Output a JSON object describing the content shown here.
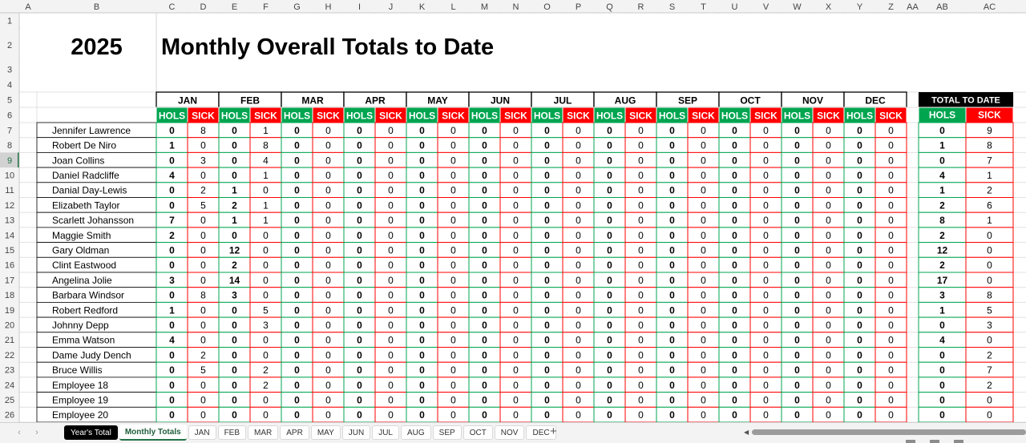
{
  "columns": [
    "A",
    "B",
    "C",
    "D",
    "E",
    "F",
    "G",
    "H",
    "I",
    "J",
    "K",
    "L",
    "M",
    "N",
    "O",
    "P",
    "Q",
    "R",
    "S",
    "T",
    "U",
    "V",
    "W",
    "X",
    "Y",
    "Z",
    "AA",
    "AB",
    "AC"
  ],
  "rows": [
    "1",
    "2",
    "3",
    "4",
    "5",
    "6",
    "7",
    "8",
    "9",
    "10",
    "11",
    "12",
    "13",
    "14",
    "15",
    "16",
    "17",
    "18",
    "19",
    "20",
    "21",
    "22",
    "23",
    "24",
    "25",
    "26"
  ],
  "year": "2025",
  "title": "Monthly Overall Totals to Date",
  "months": [
    "JAN",
    "FEB",
    "MAR",
    "APR",
    "MAY",
    "JUN",
    "JUL",
    "AUG",
    "SEP",
    "OCT",
    "NOV",
    "DEC"
  ],
  "hols_label": "HOLS",
  "sick_label": "SICK",
  "total_label": "TOTAL TO DATE",
  "colors": {
    "hols": "#00a550",
    "sick": "#ff0000",
    "header_black": "#000000",
    "selected_row": "#217346"
  },
  "selected_row": "9",
  "employees": [
    {
      "name": "Jennifer Lawrence",
      "jan": [
        0,
        8
      ],
      "feb": [
        0,
        1
      ],
      "total": [
        0,
        9
      ]
    },
    {
      "name": "Robert De Niro",
      "jan": [
        1,
        0
      ],
      "feb": [
        0,
        8
      ],
      "total": [
        1,
        8
      ]
    },
    {
      "name": "Joan Collins",
      "jan": [
        0,
        3
      ],
      "feb": [
        0,
        4
      ],
      "total": [
        0,
        7
      ]
    },
    {
      "name": "Daniel Radcliffe",
      "jan": [
        4,
        0
      ],
      "feb": [
        0,
        1
      ],
      "total": [
        4,
        1
      ]
    },
    {
      "name": "Danial Day-Lewis",
      "jan": [
        0,
        2
      ],
      "feb": [
        1,
        0
      ],
      "total": [
        1,
        2
      ]
    },
    {
      "name": "Elizabeth Taylor",
      "jan": [
        0,
        5
      ],
      "feb": [
        2,
        1
      ],
      "total": [
        2,
        6
      ]
    },
    {
      "name": "Scarlett Johansson",
      "jan": [
        7,
        0
      ],
      "feb": [
        1,
        1
      ],
      "total": [
        8,
        1
      ]
    },
    {
      "name": "Maggie Smith",
      "jan": [
        2,
        0
      ],
      "feb": [
        0,
        0
      ],
      "total": [
        2,
        0
      ]
    },
    {
      "name": "Gary Oldman",
      "jan": [
        0,
        0
      ],
      "feb": [
        12,
        0
      ],
      "total": [
        12,
        0
      ]
    },
    {
      "name": "Clint Eastwood",
      "jan": [
        0,
        0
      ],
      "feb": [
        2,
        0
      ],
      "total": [
        2,
        0
      ]
    },
    {
      "name": "Angelina Jolie",
      "jan": [
        3,
        0
      ],
      "feb": [
        14,
        0
      ],
      "total": [
        17,
        0
      ]
    },
    {
      "name": "Barbara Windsor",
      "jan": [
        0,
        8
      ],
      "feb": [
        3,
        0
      ],
      "total": [
        3,
        8
      ]
    },
    {
      "name": "Robert Redford",
      "jan": [
        1,
        0
      ],
      "feb": [
        0,
        5
      ],
      "total": [
        1,
        5
      ]
    },
    {
      "name": "Johnny Depp",
      "jan": [
        0,
        0
      ],
      "feb": [
        0,
        3
      ],
      "total": [
        0,
        3
      ]
    },
    {
      "name": "Emma Watson",
      "jan": [
        4,
        0
      ],
      "feb": [
        0,
        0
      ],
      "total": [
        4,
        0
      ]
    },
    {
      "name": "Dame Judy Dench",
      "jan": [
        0,
        2
      ],
      "feb": [
        0,
        0
      ],
      "total": [
        0,
        2
      ]
    },
    {
      "name": "Bruce Willis",
      "jan": [
        0,
        5
      ],
      "feb": [
        0,
        2
      ],
      "total": [
        0,
        7
      ]
    },
    {
      "name": "Employee 18",
      "jan": [
        0,
        0
      ],
      "feb": [
        0,
        2
      ],
      "total": [
        0,
        2
      ]
    },
    {
      "name": "Employee 19",
      "jan": [
        0,
        0
      ],
      "feb": [
        0,
        0
      ],
      "total": [
        0,
        0
      ]
    },
    {
      "name": "Employee 20",
      "jan": [
        0,
        0
      ],
      "feb": [
        0,
        0
      ],
      "total": [
        0,
        0
      ]
    }
  ],
  "other_months_value": "0",
  "sheet_tabs": [
    {
      "label": "Year's Total",
      "style": "dark"
    },
    {
      "label": "Monthly Totals",
      "style": "active"
    },
    {
      "label": "JAN"
    },
    {
      "label": "FEB"
    },
    {
      "label": "MAR"
    },
    {
      "label": "APR"
    },
    {
      "label": "MAY"
    },
    {
      "label": "JUN"
    },
    {
      "label": "JUL"
    },
    {
      "label": "AUG"
    },
    {
      "label": "SEP"
    },
    {
      "label": "OCT"
    },
    {
      "label": "NOV"
    },
    {
      "label": "DEC"
    }
  ],
  "add_sheet": "+",
  "nav": {
    "prev": "‹",
    "next": "›"
  },
  "scroll_left_arrow": "◀"
}
